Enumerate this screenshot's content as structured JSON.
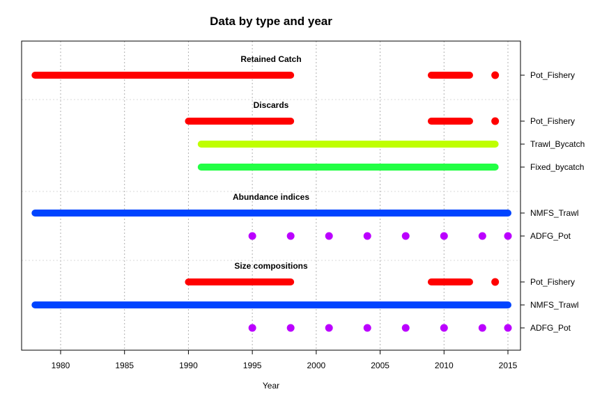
{
  "chart_data": {
    "type": "timeline",
    "title": "Data by type and year",
    "xlabel": "Year",
    "ylabel": "",
    "xlim": [
      1977,
      2016
    ],
    "x_ticks": [
      1980,
      1985,
      1990,
      1995,
      2000,
      2005,
      2010,
      2015
    ],
    "grid": "dotted vertical at ticks",
    "sections": [
      {
        "title": "Retained Catch",
        "rows": [
          {
            "label": "Pot_Fishery",
            "color": "#ff0000",
            "segments": [
              [
                1978,
                1998
              ],
              [
                2009,
                2012
              ]
            ],
            "points": [
              2014
            ]
          }
        ]
      },
      {
        "title": "Discards",
        "rows": [
          {
            "label": "Pot_Fishery",
            "color": "#ff0000",
            "segments": [
              [
                1990,
                1998
              ],
              [
                2009,
                2012
              ]
            ],
            "points": [
              2014
            ]
          },
          {
            "label": "Trawl_Bycatch",
            "color": "#bfff00",
            "segments": [
              [
                1991,
                2014
              ]
            ],
            "points": []
          },
          {
            "label": "Fixed_bycatch",
            "color": "#22ff44",
            "segments": [
              [
                1991,
                2014
              ]
            ],
            "points": []
          }
        ]
      },
      {
        "title": "Abundance indices",
        "rows": [
          {
            "label": "NMFS_Trawl",
            "color": "#0044ff",
            "segments": [
              [
                1978,
                2015
              ]
            ],
            "points": []
          },
          {
            "label": "ADFG_Pot",
            "color": "#bb00ff",
            "segments": [],
            "points": [
              1995,
              1998,
              2001,
              2004,
              2007,
              2010,
              2013,
              2015
            ]
          }
        ]
      },
      {
        "title": "Size compositions",
        "rows": [
          {
            "label": "Pot_Fishery",
            "color": "#ff0000",
            "segments": [
              [
                1990,
                1998
              ],
              [
                2009,
                2012
              ]
            ],
            "points": [
              2014
            ]
          },
          {
            "label": "NMFS_Trawl",
            "color": "#0044ff",
            "segments": [
              [
                1978,
                2015
              ]
            ],
            "points": []
          },
          {
            "label": "ADFG_Pot",
            "color": "#bb00ff",
            "segments": [],
            "points": [
              1995,
              1998,
              2001,
              2004,
              2007,
              2010,
              2013,
              2015
            ]
          }
        ]
      }
    ]
  }
}
